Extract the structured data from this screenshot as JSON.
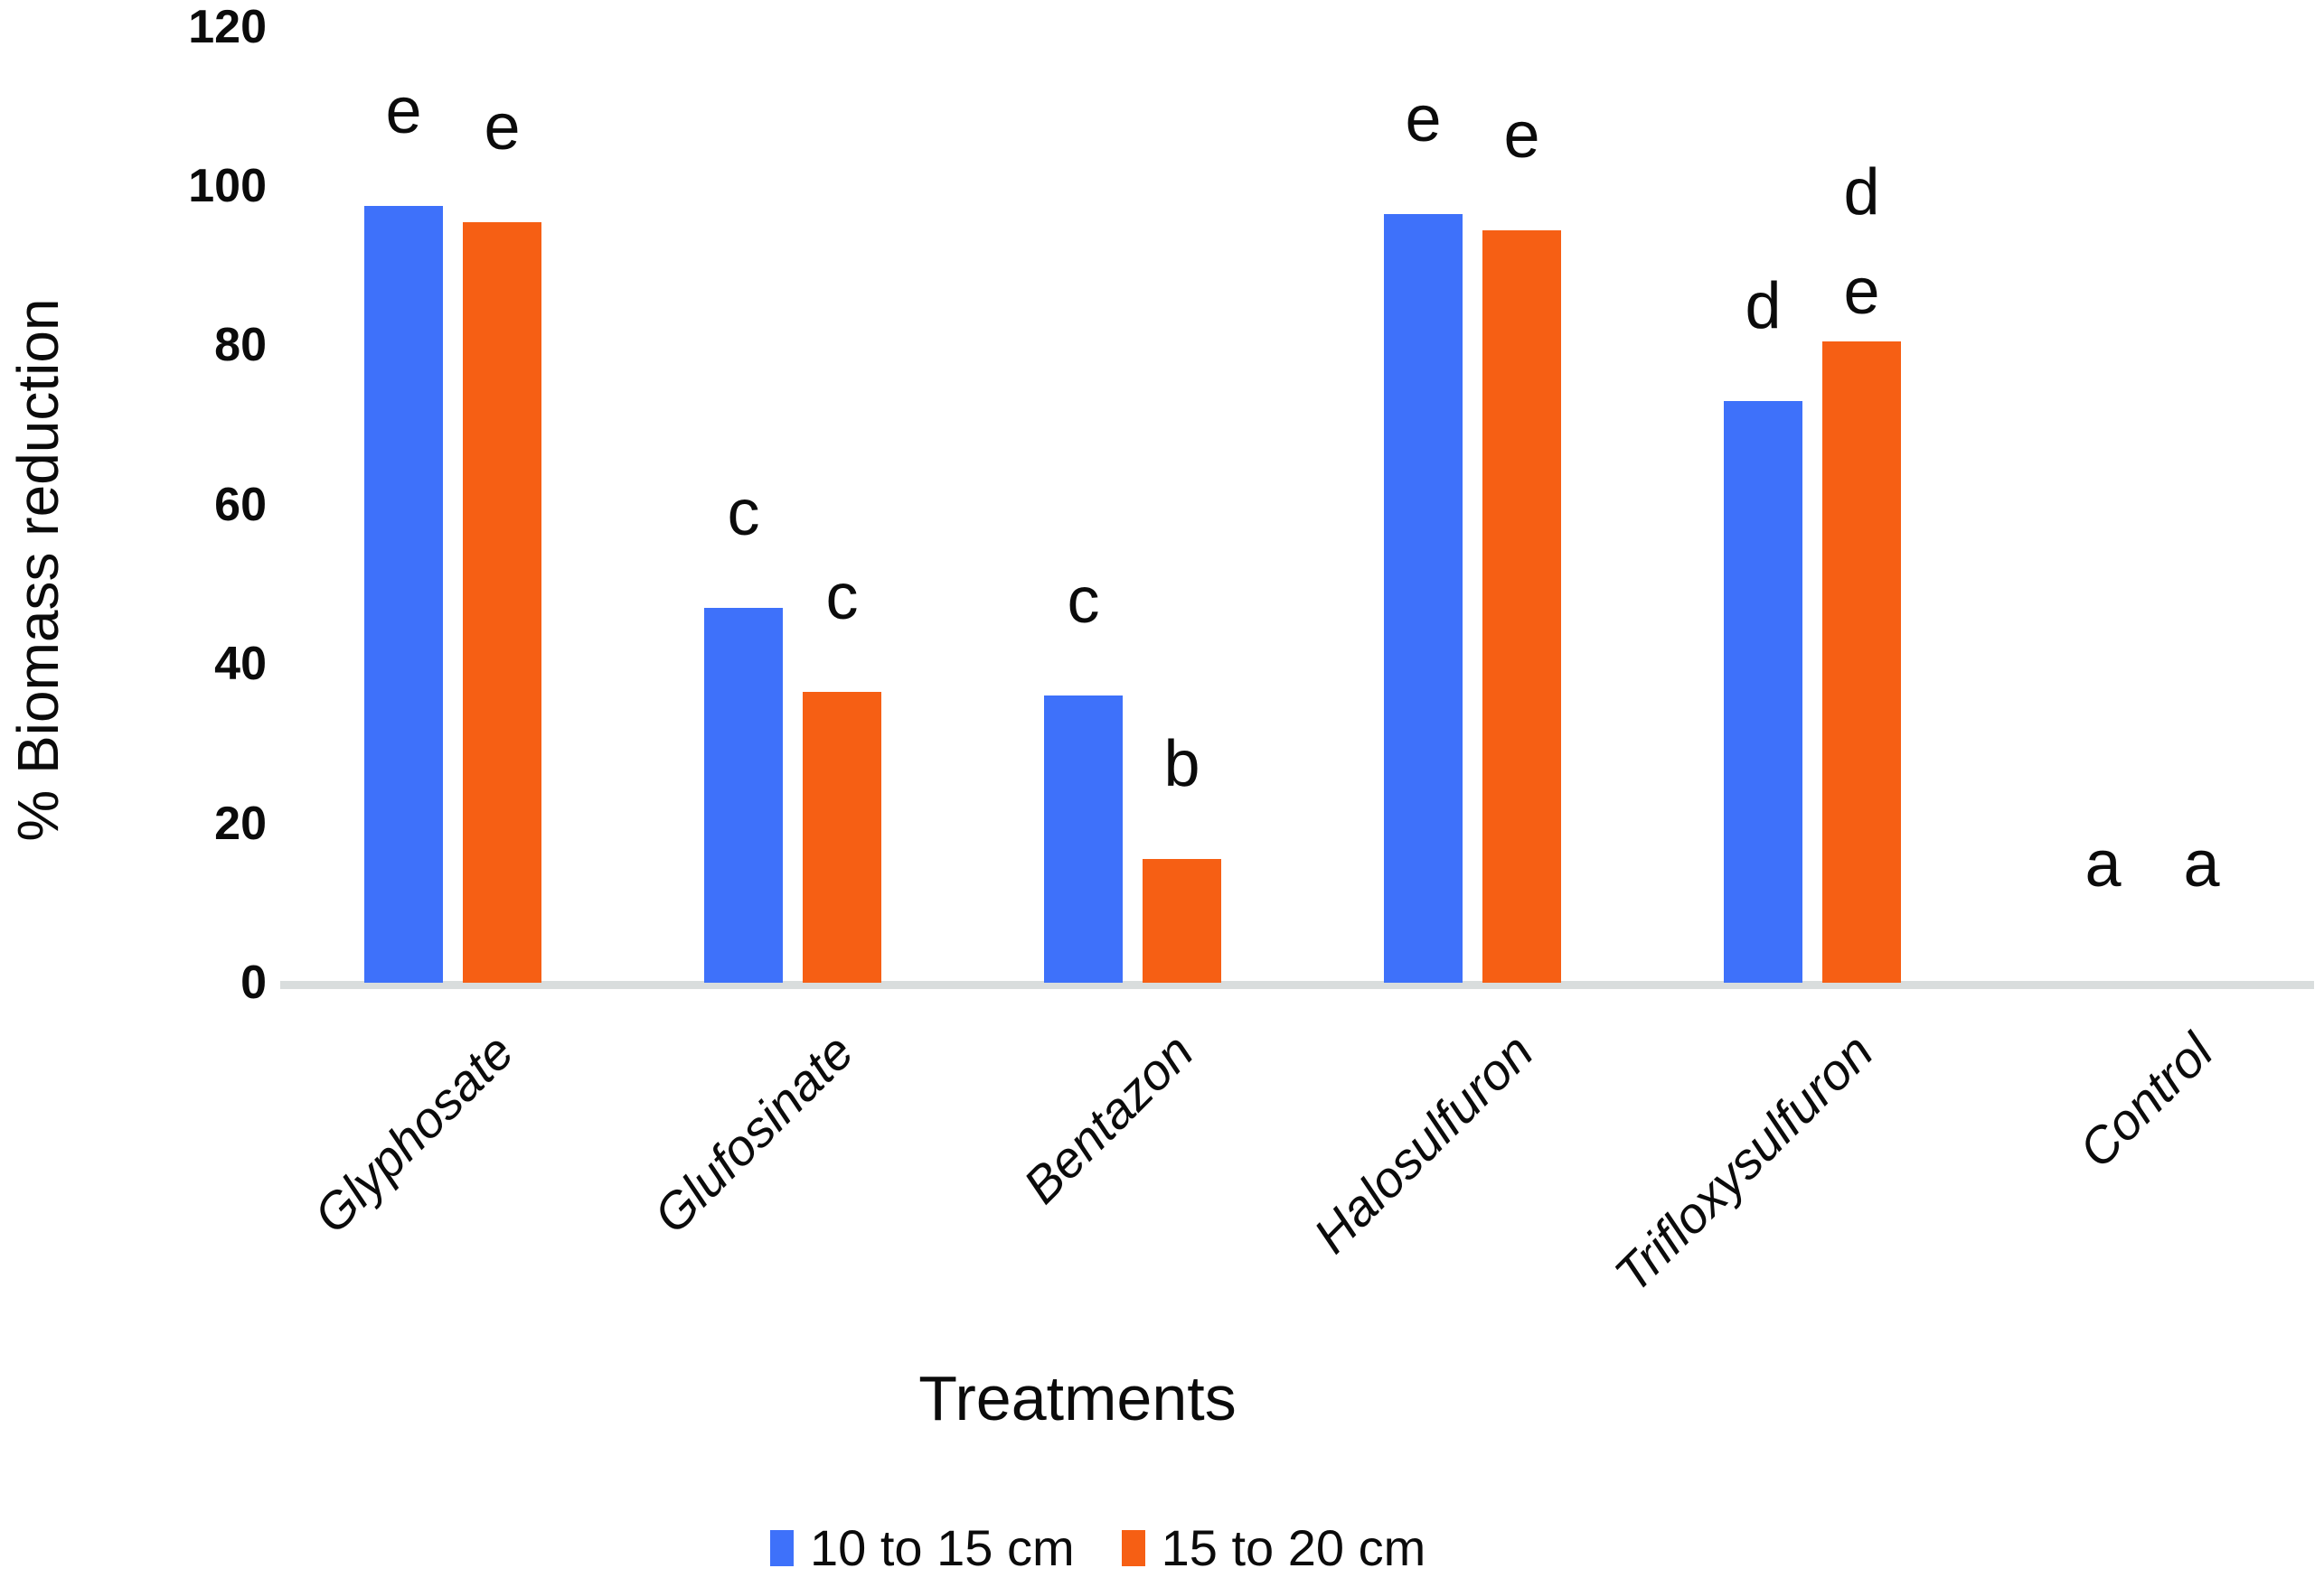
{
  "chart_data": {
    "type": "bar",
    "title": "",
    "xlabel": "Treatments",
    "ylabel": "% Biomass reduction",
    "ylim": [
      0,
      120
    ],
    "yticks": [
      0,
      20,
      40,
      60,
      80,
      100,
      120
    ],
    "grid": false,
    "legend_position": "bottom",
    "categories": [
      "Glyphosate",
      "Glufosinate",
      "Bentazon",
      "Halosulfuron",
      "Trifloxysulfuron",
      "Control"
    ],
    "series": [
      {
        "name": "10 to 15 cm",
        "color": "#3e71fa",
        "values": [
          97.5,
          47,
          36,
          96.5,
          73,
          0
        ],
        "letters": [
          [
            "e"
          ],
          [
            "c"
          ],
          [
            "c"
          ],
          [
            "e"
          ],
          [
            "d"
          ],
          [
            "a"
          ]
        ]
      },
      {
        "name": "15 to 20 cm",
        "color": "#f65f14",
        "values": [
          95.5,
          36.5,
          15.5,
          94.5,
          80.5,
          0
        ],
        "letters": [
          [
            "e"
          ],
          [
            "c"
          ],
          [
            "b"
          ],
          [
            "e"
          ],
          [
            "d",
            "e"
          ],
          [
            "a"
          ]
        ]
      }
    ],
    "axis_line_color": "#d9dddd",
    "text_color": "#0b0b0b",
    "background_color": "#ffffff"
  }
}
